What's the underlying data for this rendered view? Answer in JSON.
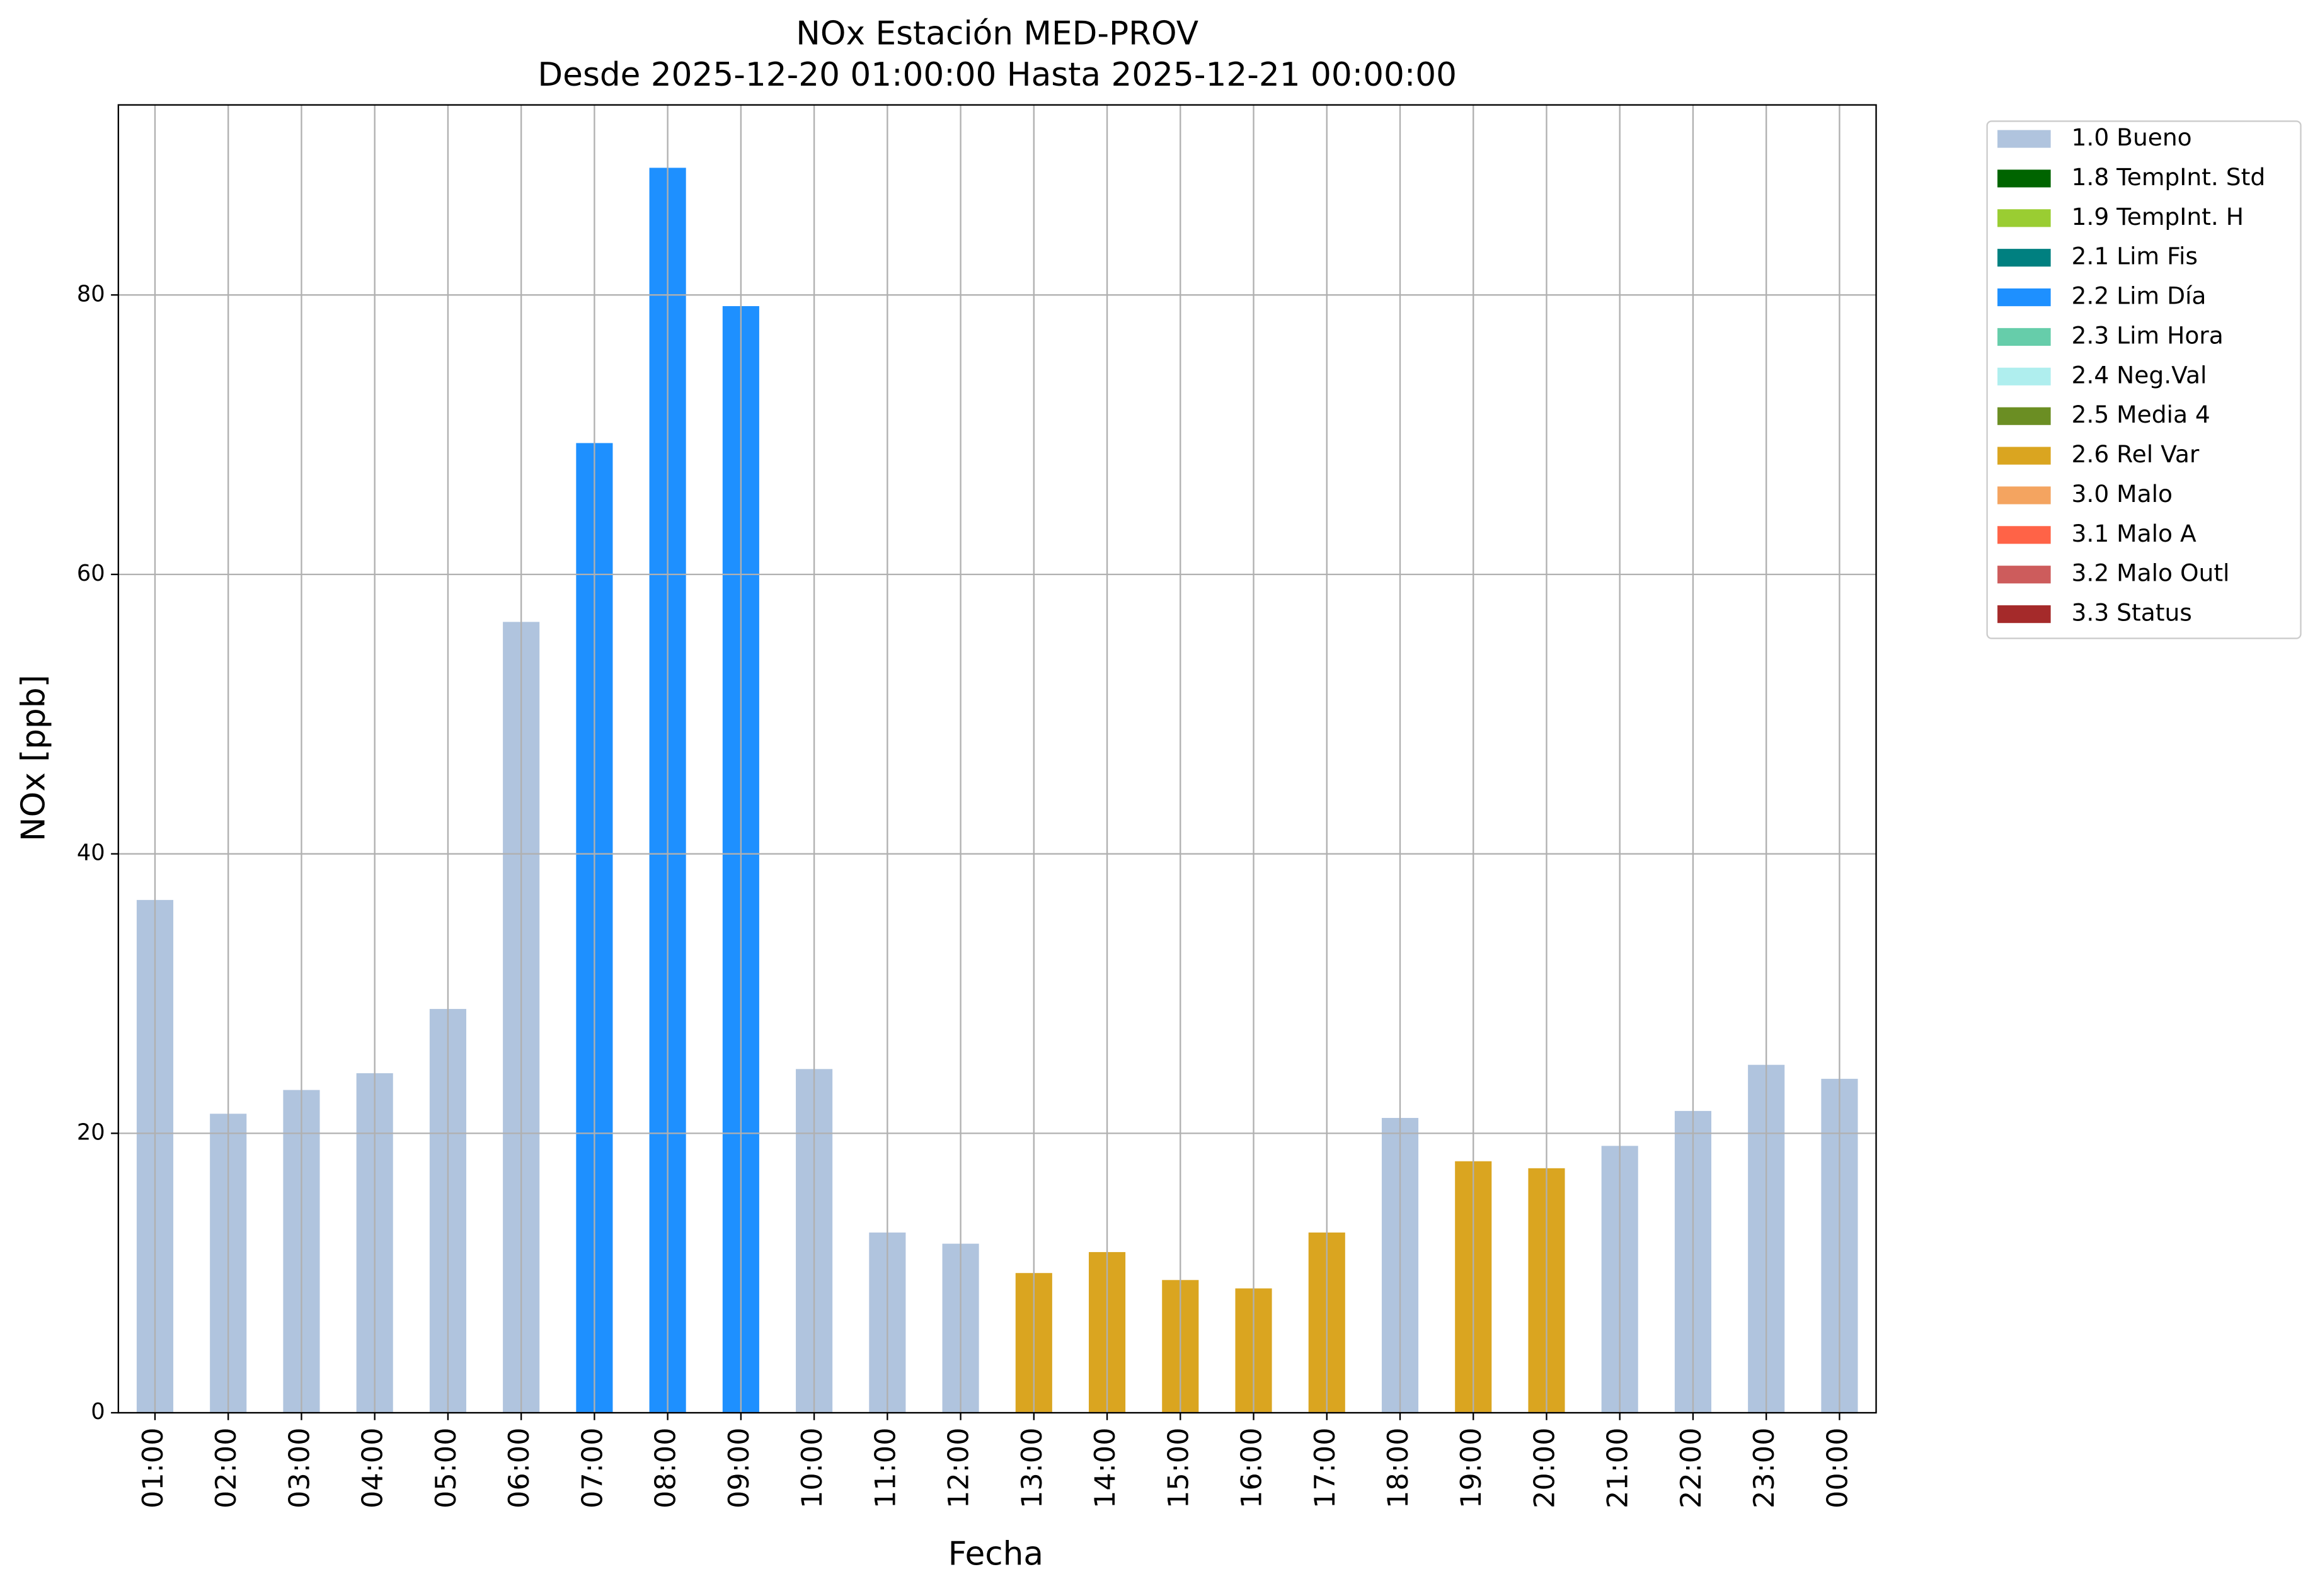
{
  "chart_data": {
    "type": "stacked_bar",
    "title": "NOx Estación MED-PROV",
    "subtitle": "Desde 2025-12-20 01:00:00 Hasta 2025-12-21 00:00:00",
    "x_label": "Fecha",
    "y_label": "NOx [ppb]",
    "categories": [
      "01:00",
      "02:00",
      "03:00",
      "04:00",
      "05:00",
      "06:00",
      "07:00",
      "08:00",
      "09:00",
      "10:00",
      "11:00",
      "12:00",
      "13:00",
      "14:00",
      "15:00",
      "16:00",
      "17:00",
      "18:00",
      "19:00",
      "20:00",
      "21:00",
      "22:00",
      "23:00",
      "00:00"
    ],
    "series": [
      {
        "name": "1.0 Bueno",
        "color": "#b0c4de",
        "values": [
          36.7,
          21.4,
          23.1,
          24.3,
          28.9,
          56.6,
          null,
          null,
          null,
          24.6,
          12.9,
          12.1,
          null,
          null,
          null,
          null,
          null,
          21.1,
          null,
          null,
          19.1,
          21.6,
          24.9,
          23.9
        ]
      },
      {
        "name": "1.8 TempInt. Std",
        "color": "#006400",
        "values": [
          null,
          null,
          null,
          null,
          null,
          null,
          null,
          null,
          null,
          null,
          null,
          null,
          null,
          null,
          null,
          null,
          null,
          null,
          null,
          null,
          null,
          null,
          null,
          null
        ]
      },
      {
        "name": "1.9 TempInt. H",
        "color": "#9acd32",
        "values": [
          null,
          null,
          null,
          null,
          null,
          null,
          null,
          null,
          null,
          null,
          null,
          null,
          null,
          null,
          null,
          null,
          null,
          null,
          null,
          null,
          null,
          null,
          null,
          null
        ]
      },
      {
        "name": "2.1 Lim Fis",
        "color": "#008080",
        "values": [
          null,
          null,
          null,
          null,
          null,
          null,
          null,
          null,
          null,
          null,
          null,
          null,
          null,
          null,
          null,
          null,
          null,
          null,
          null,
          null,
          null,
          null,
          null,
          null
        ]
      },
      {
        "name": "2.2 Lim Día",
        "color": "#1e90ff",
        "values": [
          null,
          null,
          null,
          null,
          null,
          null,
          69.4,
          89.1,
          79.2,
          null,
          null,
          null,
          null,
          null,
          null,
          null,
          null,
          null,
          null,
          null,
          null,
          null,
          null,
          null
        ]
      },
      {
        "name": "2.3 Lim Hora",
        "color": "#66cdaa",
        "values": [
          null,
          null,
          null,
          null,
          null,
          null,
          null,
          null,
          null,
          null,
          null,
          null,
          null,
          null,
          null,
          null,
          null,
          null,
          null,
          null,
          null,
          null,
          null,
          null
        ]
      },
      {
        "name": "2.4 Neg.Val",
        "color": "#afeeee",
        "values": [
          null,
          null,
          null,
          null,
          null,
          null,
          null,
          null,
          null,
          null,
          null,
          null,
          null,
          null,
          null,
          null,
          null,
          null,
          null,
          null,
          null,
          null,
          null,
          null
        ]
      },
      {
        "name": "2.5 Media 4",
        "color": "#6b8e23",
        "values": [
          null,
          null,
          null,
          null,
          null,
          null,
          null,
          null,
          null,
          null,
          null,
          null,
          null,
          null,
          null,
          null,
          null,
          null,
          null,
          null,
          null,
          null,
          null,
          null
        ]
      },
      {
        "name": "2.6 Rel Var",
        "color": "#daa520",
        "values": [
          null,
          null,
          null,
          null,
          null,
          null,
          null,
          null,
          null,
          null,
          null,
          null,
          10.0,
          11.5,
          9.5,
          8.9,
          12.9,
          null,
          18.0,
          17.5,
          null,
          null,
          null,
          null
        ]
      },
      {
        "name": "3.0 Malo",
        "color": "#f4a460",
        "values": [
          null,
          null,
          null,
          null,
          null,
          null,
          null,
          null,
          null,
          null,
          null,
          null,
          null,
          null,
          null,
          null,
          null,
          null,
          null,
          null,
          null,
          null,
          null,
          null
        ]
      },
      {
        "name": "3.1 Malo A",
        "color": "#ff6347",
        "values": [
          null,
          null,
          null,
          null,
          null,
          null,
          null,
          null,
          null,
          null,
          null,
          null,
          null,
          null,
          null,
          null,
          null,
          null,
          null,
          null,
          null,
          null,
          null,
          null
        ]
      },
      {
        "name": "3.2 Malo Outl",
        "color": "#cd5c5c",
        "values": [
          null,
          null,
          null,
          null,
          null,
          null,
          null,
          null,
          null,
          null,
          null,
          null,
          null,
          null,
          null,
          null,
          null,
          null,
          null,
          null,
          null,
          null,
          null,
          null
        ]
      },
      {
        "name": "3.3 Status",
        "color": "#a52a2a",
        "values": [
          null,
          null,
          null,
          null,
          null,
          null,
          null,
          null,
          null,
          null,
          null,
          null,
          null,
          null,
          null,
          null,
          null,
          null,
          null,
          null,
          null,
          null,
          null,
          null
        ]
      }
    ],
    "ylim": [
      0,
      93.6
    ],
    "yticks": [
      0,
      20,
      40,
      60,
      80
    ],
    "grid": true,
    "legend": "outside-right"
  }
}
